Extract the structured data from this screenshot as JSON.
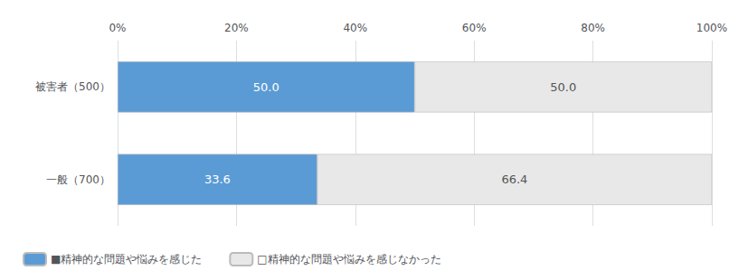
{
  "chart_data": {
    "type": "bar",
    "orientation": "horizontal",
    "stacked": true,
    "categories": [
      "被害者（500）",
      "一般（700）"
    ],
    "series": [
      {
        "name": "■精神的な問題や悩みを感じた",
        "color": "#5b9bd5",
        "values": [
          50.0,
          33.6
        ],
        "value_labels": [
          "50.0",
          "33.6"
        ]
      },
      {
        "name": "□精神的な問題や悩みを感じなかった",
        "color": "#e8e8e8",
        "values": [
          50.0,
          66.4
        ],
        "value_labels": [
          "50.0",
          "66.4"
        ]
      }
    ],
    "xlim": [
      0,
      100
    ],
    "xticks": [
      {
        "value": 0,
        "label": "0%"
      },
      {
        "value": 20,
        "label": "20%"
      },
      {
        "value": 40,
        "label": "40%"
      },
      {
        "value": 60,
        "label": "60%"
      },
      {
        "value": 80,
        "label": "80%"
      },
      {
        "value": 100,
        "label": "100%"
      }
    ],
    "grid": true,
    "data_labels": true,
    "legend": "lower left"
  }
}
